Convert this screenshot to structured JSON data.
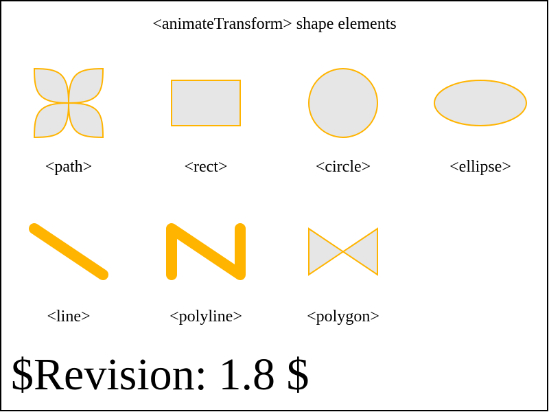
{
  "title": "<animateTransform> shape elements",
  "colors": {
    "stroke": "#ffb400",
    "fill": "#e6e6e6",
    "border": "#000000",
    "text": "#000000"
  },
  "shapes": [
    {
      "label": "<path>"
    },
    {
      "label": "<rect>"
    },
    {
      "label": "<circle>"
    },
    {
      "label": "<ellipse>"
    },
    {
      "label": "<line>"
    },
    {
      "label": "<polyline>"
    },
    {
      "label": "<polygon>"
    }
  ],
  "revision": "$Revision: 1.8 $"
}
